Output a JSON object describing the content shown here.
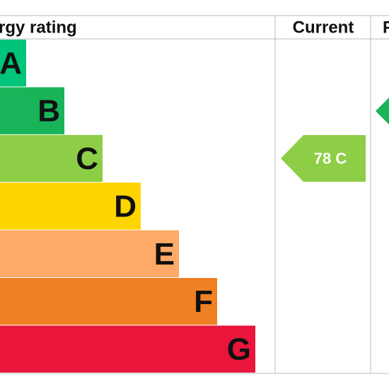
{
  "header": {
    "title": "rgy rating",
    "current": "Current",
    "potential": "P"
  },
  "bands": [
    {
      "letter": "A",
      "color": "#00c47a"
    },
    {
      "letter": "B",
      "color": "#19b459"
    },
    {
      "letter": "C",
      "color": "#8dce46"
    },
    {
      "letter": "D",
      "color": "#ffd500"
    },
    {
      "letter": "E",
      "color": "#fcaa65"
    },
    {
      "letter": "F",
      "color": "#ef8023"
    },
    {
      "letter": "G",
      "color": "#e9153b"
    }
  ],
  "current": {
    "label": "78 C",
    "color": "#8dce46"
  },
  "potential": {
    "color": "#19b459"
  }
}
